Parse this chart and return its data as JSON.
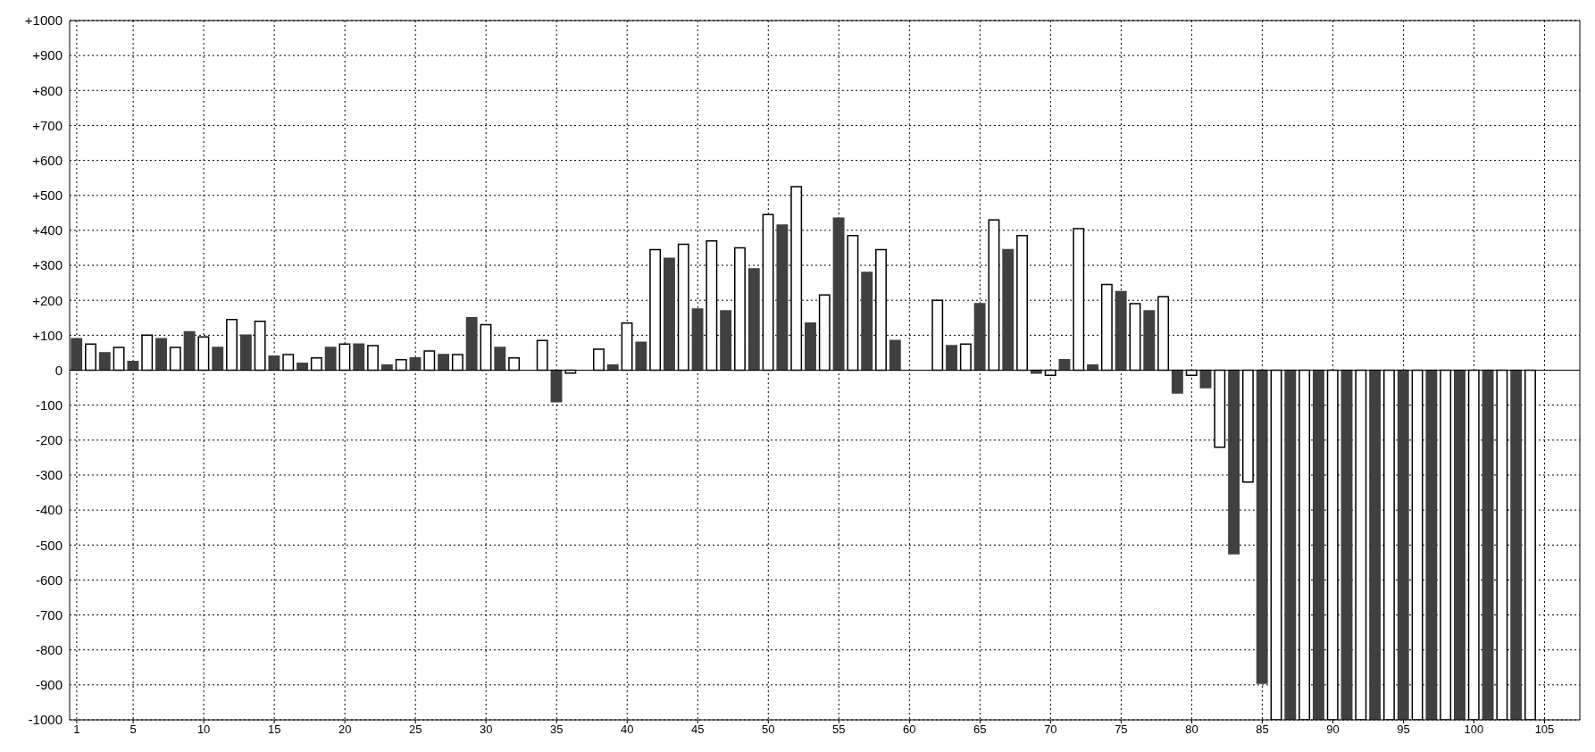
{
  "chart_data": {
    "type": "bar",
    "xlim": [
      0.5,
      107.5
    ],
    "xticks": [
      1,
      5,
      10,
      15,
      20,
      25,
      30,
      35,
      40,
      45,
      50,
      55,
      60,
      65,
      70,
      75,
      80,
      85,
      90,
      95,
      100,
      105
    ],
    "ylim": [
      -1000,
      1000
    ],
    "yticks": [
      {
        "value": -1000,
        "label": "-1000"
      },
      {
        "value": -900,
        "label": "-900"
      },
      {
        "value": -800,
        "label": "-800"
      },
      {
        "value": -700,
        "label": "-700"
      },
      {
        "value": -600,
        "label": "-600"
      },
      {
        "value": -500,
        "label": "-500"
      },
      {
        "value": -400,
        "label": "-400"
      },
      {
        "value": -300,
        "label": "-300"
      },
      {
        "value": -200,
        "label": "-200"
      },
      {
        "value": -100,
        "label": "-100"
      },
      0,
      {
        "value": 100,
        "label": "+100"
      },
      {
        "value": 200,
        "label": "+200"
      },
      {
        "value": 300,
        "label": "+300"
      },
      {
        "value": 400,
        "label": "+400"
      },
      {
        "value": 500,
        "label": "+500"
      },
      {
        "value": 600,
        "label": "+600"
      },
      {
        "value": 700,
        "label": "+700"
      },
      {
        "value": 800,
        "label": "+800"
      },
      {
        "value": 900,
        "label": "+900"
      },
      {
        "value": 1000,
        "label": "+1000"
      }
    ],
    "grid": true,
    "legend": false,
    "ref_lines": [
      {
        "axis": "y",
        "value": 0,
        "color": "#000000"
      }
    ],
    "series": [
      {
        "color": "#404040",
        "x": [
          1,
          3,
          5,
          7,
          9,
          11,
          13,
          15,
          17,
          19,
          21,
          23,
          25,
          27,
          29,
          31,
          33,
          35,
          37,
          39,
          41,
          43,
          45,
          47,
          49,
          51,
          53,
          55,
          57,
          59,
          61,
          63,
          65,
          67,
          69,
          71,
          73,
          75,
          77,
          79,
          81,
          83,
          85,
          87,
          89,
          91,
          93,
          95,
          97,
          99,
          101,
          103
        ],
        "values": [
          90,
          50,
          25,
          90,
          110,
          65,
          100,
          40,
          20,
          65,
          75,
          15,
          35,
          45,
          150,
          65,
          0,
          -90,
          0,
          15,
          80,
          320,
          175,
          170,
          290,
          415,
          135,
          435,
          280,
          85,
          0,
          70,
          190,
          345,
          -8,
          30,
          15,
          225,
          170,
          -65,
          -50,
          -525,
          -895,
          -1000,
          -1000,
          -1000,
          -1000,
          -1000,
          -1000,
          -1000,
          -1000,
          -1000
        ]
      },
      {
        "color": "#ffffff",
        "x": [
          2,
          4,
          6,
          8,
          10,
          12,
          14,
          16,
          18,
          20,
          22,
          24,
          26,
          28,
          30,
          32,
          34,
          36,
          38,
          40,
          42,
          44,
          46,
          48,
          50,
          52,
          54,
          56,
          58,
          60,
          62,
          64,
          66,
          68,
          70,
          72,
          74,
          76,
          78,
          80,
          82,
          84,
          86,
          88,
          90,
          92,
          94,
          96,
          98,
          100,
          102,
          104
        ],
        "values": [
          75,
          65,
          100,
          65,
          95,
          145,
          140,
          45,
          35,
          75,
          70,
          30,
          55,
          45,
          130,
          35,
          85,
          -8,
          60,
          135,
          345,
          360,
          370,
          350,
          445,
          525,
          215,
          385,
          345,
          0,
          200,
          75,
          430,
          385,
          -15,
          405,
          245,
          190,
          210,
          -15,
          -220,
          -320,
          -1000,
          -1000,
          -1000,
          -1000,
          -1000,
          -1000,
          -1000,
          -1000,
          -1000,
          -1000
        ]
      }
    ]
  }
}
